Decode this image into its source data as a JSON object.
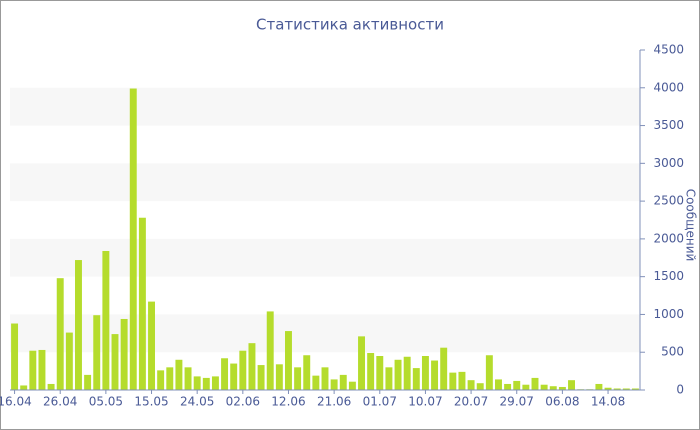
{
  "chart_data": {
    "type": "bar",
    "title": "Статистика активности",
    "y_label": "Сообщений",
    "categories": [
      "16.04",
      null,
      null,
      null,
      null,
      "26.04",
      null,
      null,
      null,
      null,
      "05.05",
      null,
      null,
      null,
      null,
      "15.05",
      null,
      null,
      null,
      null,
      "24.05",
      null,
      null,
      null,
      null,
      "02.06",
      null,
      null,
      null,
      null,
      "12.06",
      null,
      null,
      null,
      null,
      "21.06",
      null,
      null,
      null,
      null,
      "01.07",
      null,
      null,
      null,
      null,
      "10.07",
      null,
      null,
      null,
      null,
      "20.07",
      null,
      null,
      null,
      null,
      "29.07",
      null,
      null,
      null,
      null,
      "06.08",
      null,
      null,
      null,
      null,
      "14.08",
      null,
      null,
      null
    ],
    "values": [
      880,
      60,
      520,
      530,
      80,
      1480,
      760,
      1720,
      200,
      990,
      1840,
      740,
      940,
      3990,
      2280,
      1170,
      260,
      300,
      400,
      300,
      180,
      160,
      180,
      420,
      350,
      520,
      620,
      330,
      1040,
      340,
      780,
      300,
      460,
      190,
      300,
      140,
      200,
      110,
      710,
      490,
      450,
      300,
      400,
      440,
      290,
      450,
      390,
      560,
      230,
      240,
      130,
      90,
      460,
      140,
      80,
      120,
      70,
      160,
      70,
      50,
      40,
      130,
      10,
      10,
      80,
      30,
      20,
      20,
      20
    ],
    "color": "#b5dc2c",
    "ylim": [
      0,
      4500
    ],
    "yticks": [
      0,
      500,
      1000,
      1500,
      2000,
      2500,
      3000,
      3500,
      4000,
      4500
    ],
    "grid": "bands",
    "y_axis_side": "right"
  }
}
